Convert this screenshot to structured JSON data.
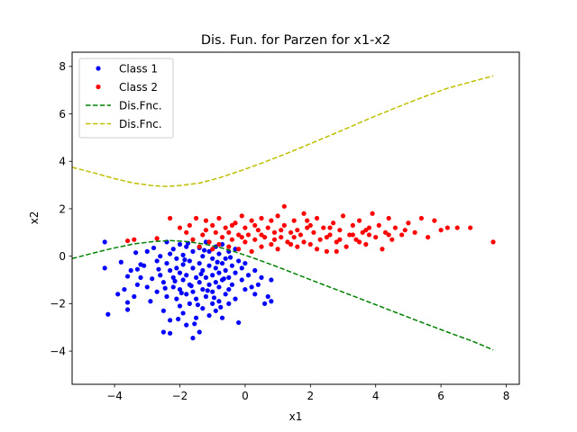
{
  "chart_data": {
    "type": "scatter",
    "title": "Dis. Fun. for Parzen for x1-x2",
    "xlabel": "x1",
    "ylabel": "x2",
    "xlim": [
      -5.3,
      8.4
    ],
    "ylim": [
      -5.4,
      8.6
    ],
    "xticks": [
      -4,
      -2,
      0,
      2,
      4,
      6,
      8
    ],
    "yticks": [
      -4,
      -2,
      0,
      2,
      4,
      6,
      8
    ],
    "grid": false,
    "legend_position": "top-left",
    "series": [
      {
        "name": "Class 1",
        "kind": "points",
        "color": "#0000ff",
        "points": [
          [
            -4.3,
            0.6
          ],
          [
            -4.3,
            -0.5
          ],
          [
            -4.2,
            -2.45
          ],
          [
            -3.9,
            -1.6
          ],
          [
            -3.8,
            -0.25
          ],
          [
            -3.7,
            -1.4
          ],
          [
            -3.6,
            -1.95
          ],
          [
            -3.6,
            -2.25
          ],
          [
            -3.6,
            -0.85
          ],
          [
            -3.5,
            -0.6
          ],
          [
            -3.4,
            -1.7
          ],
          [
            -3.3,
            -1.2
          ],
          [
            -3.3,
            -0.55
          ],
          [
            -3.2,
            -0.9
          ],
          [
            -3.2,
            -0.35
          ],
          [
            -3.1,
            -0.4
          ],
          [
            -3.0,
            0.2
          ],
          [
            -3.0,
            -1.3
          ],
          [
            -2.9,
            -1.9
          ],
          [
            -2.8,
            0.35
          ],
          [
            -2.7,
            -0.2
          ],
          [
            -2.7,
            -1.5
          ],
          [
            -2.6,
            0.0
          ],
          [
            -2.6,
            -0.8
          ],
          [
            -2.5,
            -1.1
          ],
          [
            -2.5,
            -2.3
          ],
          [
            -2.5,
            -3.2
          ],
          [
            -2.4,
            0.6
          ],
          [
            -2.4,
            -0.3
          ],
          [
            -2.4,
            -1.7
          ],
          [
            -2.3,
            0.1
          ],
          [
            -2.3,
            -0.6
          ],
          [
            -2.3,
            -2.7
          ],
          [
            -2.3,
            -3.25
          ],
          [
            -2.2,
            0.3
          ],
          [
            -2.2,
            -0.9
          ],
          [
            -2.2,
            -1.3
          ],
          [
            -2.1,
            -0.1
          ],
          [
            -2.1,
            -1.8
          ],
          [
            -2.1,
            -0.5
          ],
          [
            -2.0,
            0.5
          ],
          [
            -2.0,
            -0.7
          ],
          [
            -2.0,
            -1.4
          ],
          [
            -2.0,
            -2.1
          ],
          [
            -1.9,
            0.05
          ],
          [
            -1.9,
            -0.35
          ],
          [
            -1.9,
            -1.0
          ],
          [
            -1.9,
            -2.4
          ],
          [
            -1.8,
            0.4
          ],
          [
            -1.8,
            -0.8
          ],
          [
            -1.8,
            -1.6
          ],
          [
            -1.8,
            -2.9
          ],
          [
            -1.7,
            -0.2
          ],
          [
            -1.7,
            -1.2
          ],
          [
            -1.7,
            -2.0
          ],
          [
            -1.6,
            0.2
          ],
          [
            -1.6,
            -0.5
          ],
          [
            -1.6,
            -1.5
          ],
          [
            -1.6,
            -3.45
          ],
          [
            -1.5,
            -0.9
          ],
          [
            -1.5,
            -1.8
          ],
          [
            -1.5,
            -2.6
          ],
          [
            -1.4,
            0.35
          ],
          [
            -1.4,
            -0.3
          ],
          [
            -1.4,
            -1.1
          ],
          [
            -1.4,
            -3.2
          ],
          [
            -1.3,
            0.0
          ],
          [
            -1.3,
            -0.6
          ],
          [
            -1.3,
            -1.4
          ],
          [
            -1.3,
            -2.2
          ],
          [
            -1.2,
            0.6
          ],
          [
            -1.2,
            -0.9
          ],
          [
            -1.2,
            -1.7
          ],
          [
            -1.1,
            0.2
          ],
          [
            -1.1,
            -0.4
          ],
          [
            -1.1,
            -1.2
          ],
          [
            -1.1,
            -2.5
          ],
          [
            -1.0,
            -0.1
          ],
          [
            -1.0,
            -0.8
          ],
          [
            -1.0,
            -1.5
          ],
          [
            -1.0,
            -2.0
          ],
          [
            -0.9,
            0.4
          ],
          [
            -0.9,
            -0.5
          ],
          [
            -0.9,
            -1.1
          ],
          [
            -0.9,
            -2.3
          ],
          [
            -0.8,
            0.1
          ],
          [
            -0.8,
            -0.7
          ],
          [
            -0.8,
            -1.3
          ],
          [
            -0.8,
            -1.9
          ],
          [
            -0.7,
            0.5
          ],
          [
            -0.7,
            -0.3
          ],
          [
            -0.7,
            -1.0
          ],
          [
            -0.7,
            -2.6
          ],
          [
            -0.6,
            -0.1
          ],
          [
            -0.6,
            -0.6
          ],
          [
            -0.6,
            -1.6
          ],
          [
            -0.5,
            0.2
          ],
          [
            -0.5,
            -0.9
          ],
          [
            -0.5,
            -1.4
          ],
          [
            -0.5,
            -2.0
          ],
          [
            -0.4,
            -0.4
          ],
          [
            -0.4,
            -1.2
          ],
          [
            -0.3,
            0.3
          ],
          [
            -0.3,
            -0.7
          ],
          [
            -0.3,
            -1.8
          ],
          [
            -0.2,
            -2.8
          ],
          [
            -0.2,
            -0.2
          ],
          [
            -0.1,
            -1.0
          ],
          [
            -0.1,
            -0.5
          ],
          [
            0.0,
            -1.4
          ],
          [
            0.0,
            -0.3
          ],
          [
            0.1,
            -0.8
          ],
          [
            0.2,
            -1.3
          ],
          [
            0.3,
            -0.6
          ],
          [
            0.3,
            -1.6
          ],
          [
            0.4,
            -1.2
          ],
          [
            0.5,
            -0.9
          ],
          [
            0.6,
            -2.0
          ],
          [
            0.7,
            -1.7
          ],
          [
            0.8,
            -1.0
          ],
          [
            0.8,
            -1.9
          ],
          [
            -1.85,
            -0.15
          ],
          [
            -2.15,
            -1.05
          ],
          [
            -1.35,
            -0.75
          ],
          [
            -1.65,
            -1.25
          ],
          [
            -1.15,
            -1.45
          ],
          [
            -0.65,
            -0.95
          ],
          [
            -2.45,
            -1.35
          ],
          [
            -1.95,
            -1.55
          ],
          [
            -1.45,
            -2.05
          ],
          [
            -0.95,
            -1.75
          ],
          [
            -2.65,
            -0.55
          ],
          [
            -3.35,
            0.15
          ],
          [
            -2.85,
            -0.95
          ],
          [
            -1.75,
            0.55
          ],
          [
            -0.45,
            -0.05
          ],
          [
            -1.25,
            0.25
          ],
          [
            -0.85,
            -0.25
          ],
          [
            -2.05,
            -2.65
          ],
          [
            -1.55,
            -2.85
          ],
          [
            -0.75,
            -2.15
          ]
        ]
      },
      {
        "name": "Class 2",
        "kind": "points",
        "color": "#ff0000",
        "points": [
          [
            -3.6,
            0.65
          ],
          [
            -3.4,
            0.7
          ],
          [
            -2.7,
            0.75
          ],
          [
            -2.3,
            1.6
          ],
          [
            -2.0,
            1.2
          ],
          [
            -1.8,
            1.0
          ],
          [
            -1.7,
            1.3
          ],
          [
            -1.6,
            0.7
          ],
          [
            -1.5,
            1.6
          ],
          [
            -1.4,
            0.4
          ],
          [
            -1.3,
            0.9
          ],
          [
            -1.2,
            1.5
          ],
          [
            -1.2,
            1.1
          ],
          [
            -1.1,
            0.6
          ],
          [
            -1.0,
            1.3
          ],
          [
            -1.0,
            0.3
          ],
          [
            -0.9,
            1.0
          ],
          [
            -0.8,
            1.6
          ],
          [
            -0.8,
            0.5
          ],
          [
            -0.7,
            0.8
          ],
          [
            -0.6,
            1.2
          ],
          [
            -0.5,
            0.4
          ],
          [
            -0.5,
            1.0
          ],
          [
            -0.4,
            0.7
          ],
          [
            -0.3,
            1.4
          ],
          [
            -0.2,
            0.3
          ],
          [
            -0.2,
            0.9
          ],
          [
            -0.1,
            1.7
          ],
          [
            0.0,
            0.6
          ],
          [
            0.0,
            1.2
          ],
          [
            0.1,
            0.9
          ],
          [
            0.2,
            1.5
          ],
          [
            0.2,
            0.2
          ],
          [
            0.3,
            0.7
          ],
          [
            0.4,
            1.1
          ],
          [
            0.5,
            0.4
          ],
          [
            0.5,
            1.6
          ],
          [
            0.6,
            0.8
          ],
          [
            0.7,
            1.2
          ],
          [
            0.8,
            0.5
          ],
          [
            0.9,
            1.0
          ],
          [
            1.0,
            1.7
          ],
          [
            1.0,
            0.3
          ],
          [
            1.1,
            0.8
          ],
          [
            1.2,
            1.3
          ],
          [
            1.2,
            2.1
          ],
          [
            1.3,
            0.6
          ],
          [
            1.4,
            1.0
          ],
          [
            1.5,
            1.5
          ],
          [
            1.6,
            0.4
          ],
          [
            1.7,
            0.9
          ],
          [
            1.8,
            1.8
          ],
          [
            1.9,
            1.2
          ],
          [
            2.0,
            0.5
          ],
          [
            2.1,
            1.0
          ],
          [
            2.2,
            1.6
          ],
          [
            2.3,
            0.7
          ],
          [
            2.4,
            1.2
          ],
          [
            2.5,
            0.2
          ],
          [
            2.6,
            0.9
          ],
          [
            2.7,
            1.4
          ],
          [
            2.8,
            0.6
          ],
          [
            2.9,
            1.1
          ],
          [
            3.0,
            1.7
          ],
          [
            3.1,
            0.4
          ],
          [
            3.2,
            0.9
          ],
          [
            3.3,
            1.3
          ],
          [
            3.4,
            0.7
          ],
          [
            3.5,
            1.5
          ],
          [
            3.6,
            1.0
          ],
          [
            3.7,
            0.5
          ],
          [
            3.8,
            1.2
          ],
          [
            3.9,
            1.8
          ],
          [
            4.0,
            0.8
          ],
          [
            4.1,
            1.3
          ],
          [
            4.2,
            0.3
          ],
          [
            4.3,
            1.0
          ],
          [
            4.4,
            1.6
          ],
          [
            4.5,
            0.7
          ],
          [
            4.6,
            1.2
          ],
          [
            4.8,
            0.9
          ],
          [
            5.0,
            1.4
          ],
          [
            5.2,
            1.0
          ],
          [
            5.4,
            1.6
          ],
          [
            5.6,
            0.8
          ],
          [
            5.8,
            1.5
          ],
          [
            6.0,
            1.1
          ],
          [
            6.2,
            1.2
          ],
          [
            6.5,
            1.2
          ],
          [
            6.9,
            1.2
          ],
          [
            7.6,
            0.6
          ],
          [
            0.3,
            1.3
          ],
          [
            0.8,
            1.5
          ],
          [
            1.5,
            0.8
          ],
          [
            2.2,
            0.3
          ],
          [
            2.9,
            0.7
          ],
          [
            3.7,
            1.1
          ],
          [
            1.8,
            0.6
          ],
          [
            2.6,
            1.2
          ],
          [
            3.3,
            0.9
          ],
          [
            0.5,
            0.9
          ],
          [
            1.1,
            1.1
          ],
          [
            -0.4,
            1.3
          ],
          [
            1.9,
            1.5
          ],
          [
            2.5,
            0.8
          ],
          [
            3.8,
            0.9
          ],
          [
            4.4,
            0.9
          ],
          [
            2.0,
            1.3
          ],
          [
            1.4,
            0.5
          ],
          [
            0.9,
            0.7
          ],
          [
            -0.1,
            0.8
          ],
          [
            1.6,
            1.1
          ],
          [
            2.8,
            0.2
          ],
          [
            3.5,
            0.6
          ],
          [
            4.9,
            1.1
          ]
        ]
      },
      {
        "name": "Dis.Fnc.",
        "kind": "dashed-line",
        "color": "#008000",
        "x": [
          -5.3,
          -4.6,
          -4.0,
          -3.4,
          -2.8,
          -2.3,
          -1.8,
          -1.3,
          -0.8,
          -0.3,
          0.2,
          0.8,
          1.5,
          2.3,
          3.2,
          4.2,
          5.2,
          6.2,
          7.0,
          7.6
        ],
        "y": [
          -0.1,
          0.15,
          0.35,
          0.52,
          0.62,
          0.66,
          0.62,
          0.52,
          0.38,
          0.18,
          -0.05,
          -0.35,
          -0.72,
          -1.15,
          -1.62,
          -2.15,
          -2.68,
          -3.2,
          -3.6,
          -3.95
        ]
      },
      {
        "name": "Dis.Fnc.",
        "kind": "dashed-line",
        "color": "#bfbf00",
        "x": [
          -5.3,
          -4.6,
          -4.0,
          -3.4,
          -2.8,
          -2.4,
          -2.0,
          -1.4,
          -0.8,
          -0.1,
          0.6,
          1.4,
          2.2,
          3.0,
          3.8,
          4.6,
          5.4,
          6.2,
          7.0,
          7.6
        ],
        "y": [
          3.75,
          3.5,
          3.27,
          3.08,
          2.97,
          2.94,
          2.98,
          3.08,
          3.3,
          3.62,
          3.97,
          4.4,
          4.86,
          5.32,
          5.8,
          6.25,
          6.68,
          7.08,
          7.38,
          7.6
        ]
      }
    ]
  }
}
